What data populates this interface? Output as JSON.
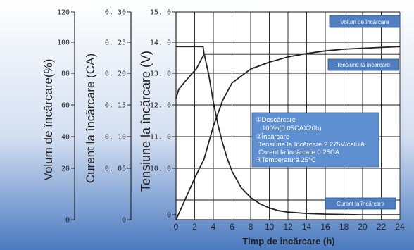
{
  "chart_data": {
    "type": "line",
    "title": "",
    "xlabel": "Timp de încărcare (h)",
    "x_ticks": [
      "0",
      "2",
      "4",
      "6",
      "8",
      "10",
      "12",
      "14",
      "16",
      "18",
      "20",
      "22",
      "24"
    ],
    "xlim": [
      0,
      24
    ],
    "y_axes": [
      {
        "label": "Volum de încărcare(%)",
        "ticks": [
          "120",
          "100",
          "80",
          "60",
          "40",
          "20",
          "0"
        ],
        "ylim": [
          0,
          120
        ]
      },
      {
        "label": "Curent la încărcare (CA)",
        "ticks": [
          "0. 30",
          "0. 25",
          "0. 20",
          "0. 15",
          "0. 10",
          "0. 05",
          "0"
        ],
        "ylim": [
          0,
          0.3
        ]
      },
      {
        "label": "Tensiune la încărcare (V)",
        "ticks": [
          "15. 0",
          "14. 0",
          "13. 0",
          "12. 0",
          "11. 0",
          "10. 0",
          "0"
        ],
        "ylim": [
          9,
          15
        ]
      }
    ],
    "grid": true,
    "series": [
      {
        "name": "Volum de încărcare",
        "axis": "Volum de încărcare(%)",
        "x": [
          0,
          1,
          2,
          3,
          4,
          5,
          6,
          8,
          10,
          12,
          14,
          16,
          18,
          20,
          22,
          24
        ],
        "y": [
          0,
          12,
          24,
          35,
          54,
          69,
          79,
          87,
          91,
          94,
          96,
          97.5,
          98.5,
          99,
          99.5,
          100
        ]
      },
      {
        "name": "Tensiune la încărcare",
        "axis": "Tensiune la încărcare (V)",
        "x": [
          0,
          0.3,
          1,
          1.6,
          2.2,
          2.8,
          3.1,
          4,
          6,
          10,
          14,
          18,
          22,
          24
        ],
        "y": [
          12.2,
          12.5,
          12.75,
          12.95,
          13.15,
          13.5,
          13.62,
          13.62,
          13.62,
          13.62,
          13.62,
          13.62,
          13.62,
          13.62
        ]
      },
      {
        "name": "Curent la încărcare",
        "axis": "Curent la încărcare (CA)",
        "x": [
          0,
          2.9,
          3.0,
          3.5,
          4,
          4.5,
          5,
          5.5,
          6,
          7,
          8,
          9,
          10,
          11,
          12,
          14,
          16,
          18,
          20,
          24
        ],
        "y": [
          0.25,
          0.25,
          0.24,
          0.21,
          0.17,
          0.137,
          0.11,
          0.088,
          0.07,
          0.046,
          0.032,
          0.023,
          0.017,
          0.013,
          0.011,
          0.009,
          0.008,
          0.0075,
          0.007,
          0.007
        ]
      }
    ],
    "labels": {
      "volume": "Volum de încărcare",
      "voltage": "Tensiune la încărcare",
      "current": "Curent la încărcare"
    },
    "annotation_lines": [
      "①Descărcare",
      "100%(0.05CAX20h)",
      "②Încărcare",
      "Tensiune la încărcare 2.275V/celulă",
      "Curent la încărcare 0.25CA",
      "③Temperatură 25°C"
    ]
  },
  "colors": {
    "bg_top": "#ffffff",
    "bg_mid": "#c9d7ee",
    "bg_bottom": "#4a78bd",
    "label_box": "#4f7fc0"
  }
}
